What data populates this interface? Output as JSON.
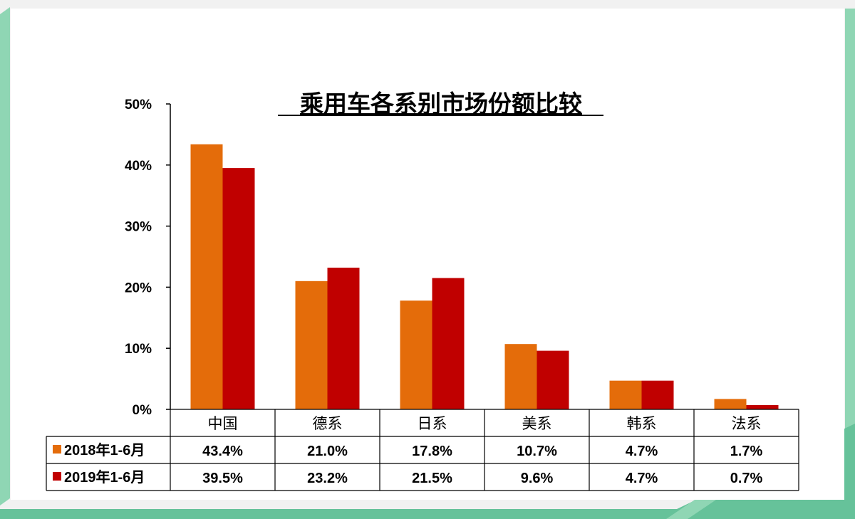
{
  "chart_data": {
    "type": "bar",
    "title": "乘用车各系别市场份额比较",
    "xlabel": "",
    "ylabel": "",
    "ylim": [
      0,
      50
    ],
    "y_ticks": [
      "0%",
      "10%",
      "20%",
      "30%",
      "40%",
      "50%"
    ],
    "y_tick_values": [
      0,
      10,
      20,
      30,
      40,
      50
    ],
    "categories": [
      "中国",
      "德系",
      "日系",
      "美系",
      "韩系",
      "法系"
    ],
    "series": [
      {
        "name": "2018年1-6月",
        "color": "#e46c0a",
        "values": [
          43.4,
          21.0,
          17.8,
          10.7,
          4.7,
          1.7
        ],
        "labels": [
          "43.4%",
          "21.0%",
          "17.8%",
          "10.7%",
          "4.7%",
          "1.7%"
        ]
      },
      {
        "name": "2019年1-6月",
        "color": "#c00000",
        "values": [
          39.5,
          23.2,
          21.5,
          9.6,
          4.7,
          0.7
        ],
        "labels": [
          "39.5%",
          "23.2%",
          "21.5%",
          "9.6%",
          "4.7%",
          "0.7%"
        ]
      }
    ],
    "grid": false,
    "legend": "data-table"
  },
  "colors": {
    "accent_green": "#66c29a",
    "light_green": "#8fd6b4",
    "slide_bg": "#ffffff",
    "page_bg": "#f1f1f1"
  }
}
